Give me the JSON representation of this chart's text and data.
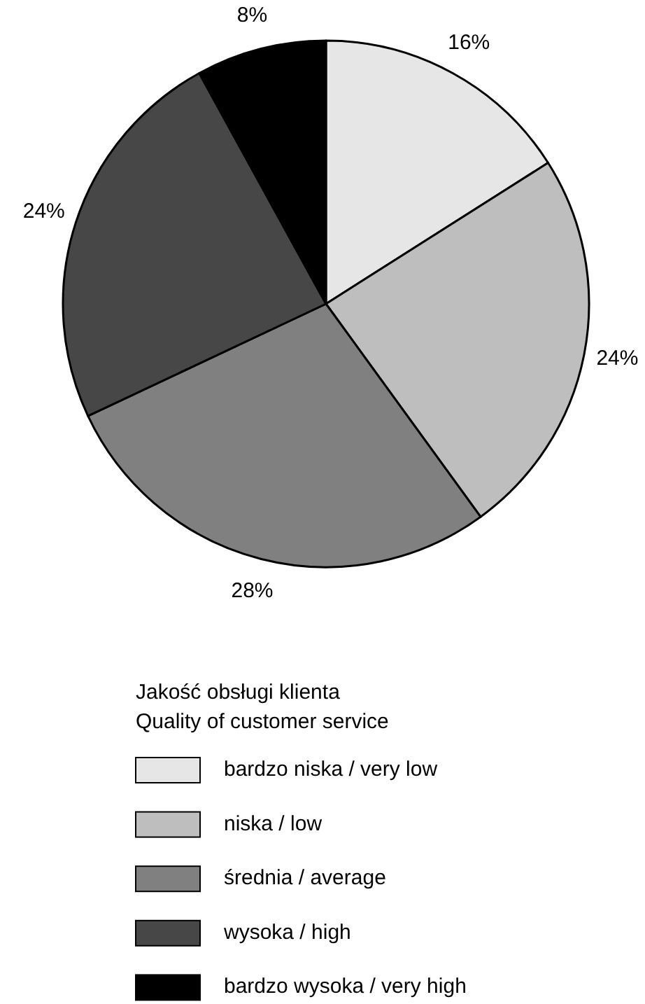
{
  "chart_data": {
    "type": "pie",
    "legend_title": "Jakość obsługi klienta\nQuality of customer service",
    "categories": [
      "bardzo niska / very low",
      "niska / low",
      "średnia / average",
      "wysoka / high",
      "bardzo wysoka / very high"
    ],
    "values": [
      16,
      24,
      28,
      24,
      8
    ],
    "value_labels": [
      "16%",
      "24%",
      "28%",
      "24%",
      "8%"
    ],
    "colors": [
      "#e6e6e6",
      "#bebebe",
      "#808080",
      "#474747",
      "#000000"
    ],
    "legend": "bottom"
  }
}
